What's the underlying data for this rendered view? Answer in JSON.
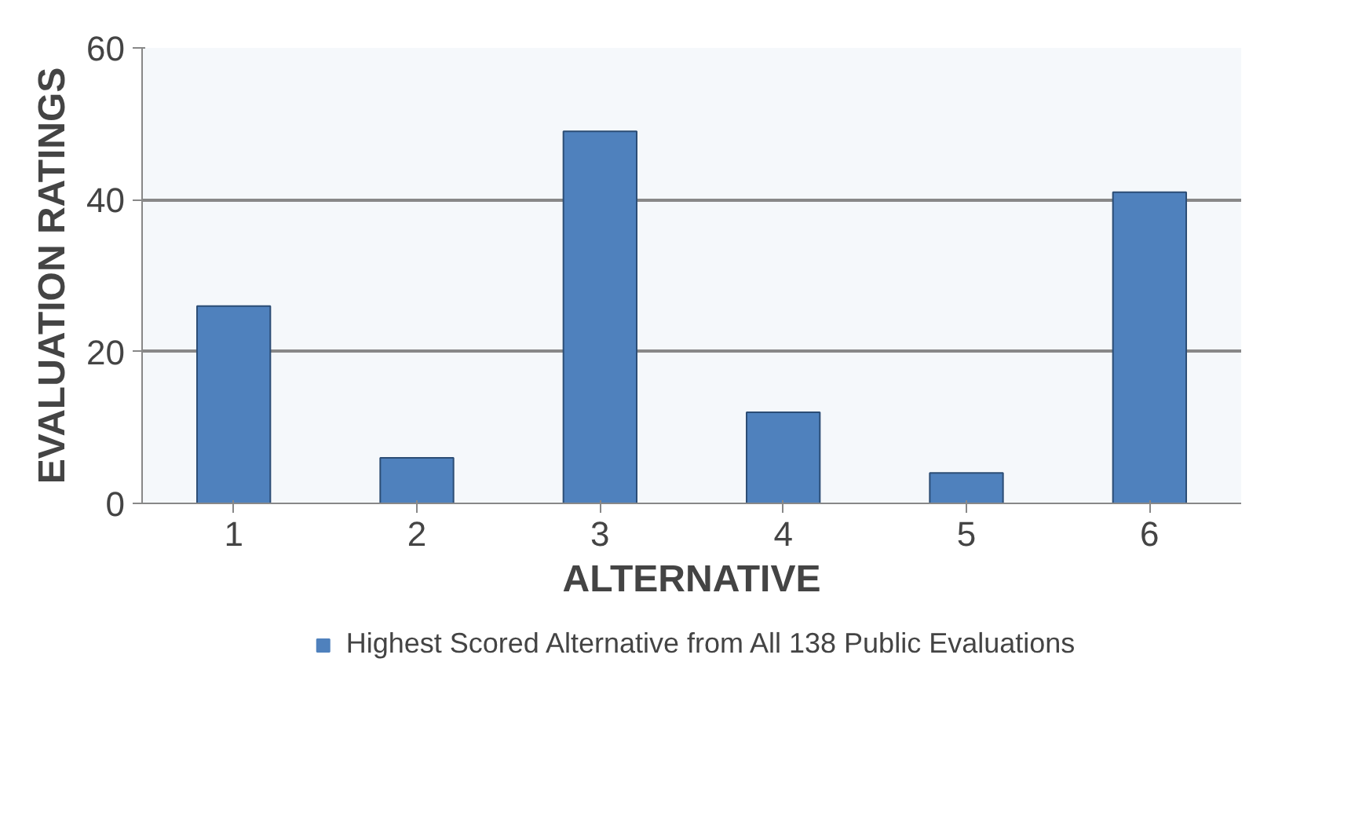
{
  "chart_data": {
    "type": "bar",
    "xlabel": "ALTERNATIVE",
    "ylabel": "EVALUATION RATINGS",
    "categories": [
      "1",
      "2",
      "3",
      "4",
      "5",
      "6"
    ],
    "series": [
      {
        "name": "Highest Scored Alternative from All 138 Public Evaluations",
        "color": "#4f81bd",
        "values": [
          26,
          6,
          49,
          12,
          4,
          41
        ]
      }
    ],
    "ylim": [
      0,
      60
    ],
    "yticks": [
      0,
      20,
      40,
      60
    ],
    "grid": "y",
    "legend": "bottom"
  }
}
